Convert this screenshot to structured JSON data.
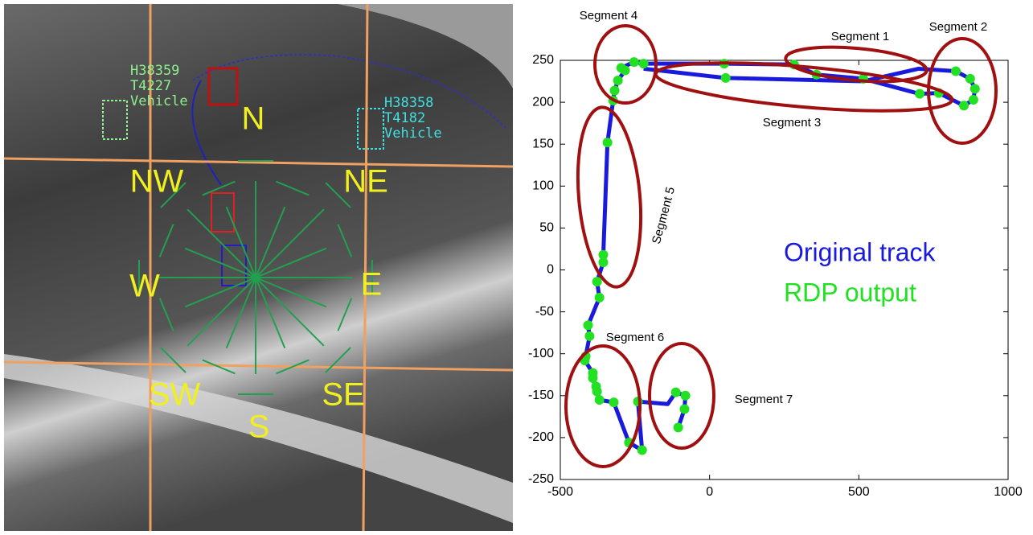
{
  "image_labels": {
    "directions": [
      "N",
      "NE",
      "E",
      "SE",
      "S",
      "SW",
      "W",
      "NW"
    ],
    "tracks": [
      {
        "id": "H38359",
        "track": "T4227",
        "class": "Vehicle",
        "color": "#8ef08e"
      },
      {
        "id": "H38358",
        "track": "T4182",
        "class": "Vehicle",
        "color": "#40e0e0"
      }
    ]
  },
  "chart_data": {
    "type": "line",
    "xlim": [
      -500,
      1000
    ],
    "xticks": [
      -500,
      0,
      500,
      1000
    ],
    "ylim": [
      -250,
      250
    ],
    "yticks": [
      -250,
      -200,
      -150,
      -100,
      -50,
      0,
      50,
      100,
      150,
      200,
      250
    ],
    "series": [
      {
        "name": "Original track",
        "type": "line",
        "color": "#1a1adc",
        "x": [
          -105,
          -84,
          -81,
          -113,
          -140,
          -240,
          -226,
          -270,
          -321,
          -369,
          -377,
          -380,
          -391,
          -391,
          -418,
          -415,
          -402,
          -407,
          -369,
          -377,
          -356,
          -356,
          -342,
          -323,
          -318,
          -307,
          -283,
          -296,
          -253,
          -221,
          49,
          283,
          358,
          515,
          704,
          768,
          852,
          884,
          889,
          873,
          825,
          700,
          515,
          54,
          -221
        ],
        "values": [
          -188,
          -166,
          -150,
          -146,
          -160,
          -157,
          -215,
          -206,
          -158,
          -155,
          -145,
          -139,
          -129,
          -123,
          -108,
          -103,
          -79,
          -66,
          -33,
          -14,
          9,
          18,
          152,
          202,
          214,
          226,
          238,
          241,
          248,
          246,
          246,
          245,
          233,
          228,
          210,
          211,
          196,
          203,
          216,
          228,
          237,
          240,
          225,
          229,
          240
        ]
      },
      {
        "name": "RDP output",
        "type": "scatter",
        "color": "#22e022",
        "x": [
          -105,
          -84,
          -81,
          -113,
          -240,
          -226,
          -270,
          -321,
          -369,
          -377,
          -380,
          -391,
          -391,
          -418,
          -415,
          -402,
          -407,
          -369,
          -377,
          -356,
          -356,
          -342,
          -323,
          -318,
          -307,
          -283,
          -296,
          -253,
          -221,
          49,
          54,
          283,
          358,
          515,
          704,
          768,
          825,
          873,
          889,
          884,
          852
        ],
        "values": [
          -188,
          -166,
          -150,
          -146,
          -157,
          -215,
          -206,
          -158,
          -155,
          -145,
          -139,
          -129,
          -123,
          -108,
          -103,
          -79,
          -66,
          -33,
          -14,
          9,
          18,
          152,
          202,
          214,
          226,
          238,
          241,
          248,
          246,
          246,
          229,
          245,
          233,
          228,
          210,
          211,
          237,
          228,
          216,
          203,
          196
        ]
      }
    ],
    "annotations": [
      "Segment 1",
      "Segment 2",
      "Segment 3",
      "Segment 4",
      "Segment 5",
      "Segment 6",
      "Segment 7"
    ]
  }
}
